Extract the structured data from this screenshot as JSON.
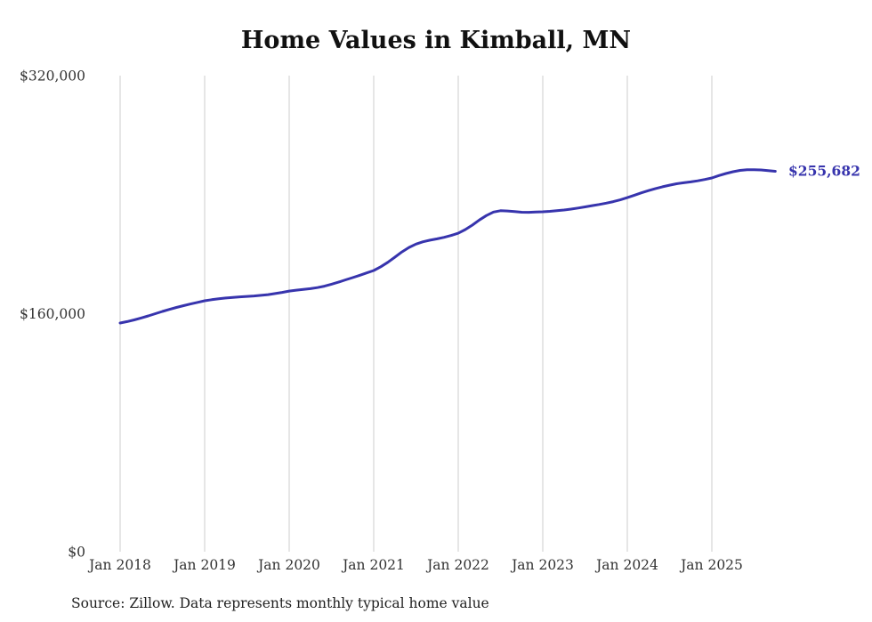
{
  "chart_data": {
    "type": "line",
    "title": "Home Values in Kimball, MN",
    "series_name": "Monthly typical home value",
    "x_start": "2018-01",
    "x_end": "2025-10",
    "x_frequency": "monthly",
    "x_tick_labels": [
      "Jan 2018",
      "Jan 2019",
      "Jan 2020",
      "Jan 2021",
      "Jan 2022",
      "Jan 2023",
      "Jan 2024",
      "Jan 2025"
    ],
    "y_ticks": [
      0,
      160000,
      320000
    ],
    "y_tick_labels": [
      "$0",
      "$160,000",
      "$320,000"
    ],
    "ylim": [
      0,
      320000
    ],
    "grid": "vertical-only",
    "legend": "none",
    "line_color": "#3734ad",
    "grid_color": "#cccccc",
    "end_label": "$255,682",
    "end_value": 255682,
    "source": "Source: Zillow. Data represents monthly typical home value",
    "values": [
      153700,
      154700,
      155800,
      157100,
      158500,
      160000,
      161500,
      162900,
      164200,
      165400,
      166500,
      167600,
      168700,
      169400,
      170000,
      170500,
      170900,
      171300,
      171600,
      171900,
      172300,
      172800,
      173500,
      174300,
      175200,
      175800,
      176300,
      176800,
      177500,
      178500,
      179800,
      181200,
      182700,
      184200,
      185800,
      187400,
      189000,
      191500,
      194500,
      198000,
      201500,
      204500,
      206800,
      208300,
      209400,
      210300,
      211300,
      212600,
      214100,
      216500,
      219500,
      223000,
      226000,
      228300,
      229200,
      229000,
      228600,
      228200,
      228100,
      228300,
      228500,
      228800,
      229200,
      229700,
      230300,
      231000,
      231800,
      232600,
      233400,
      234300,
      235300,
      236500,
      238000,
      239600,
      241200,
      242700,
      244100,
      245300,
      246400,
      247300,
      248000,
      248600,
      249300,
      250200,
      251200,
      252800,
      254200,
      255400,
      256300,
      256700,
      256800,
      256600,
      256200,
      255682
    ]
  }
}
